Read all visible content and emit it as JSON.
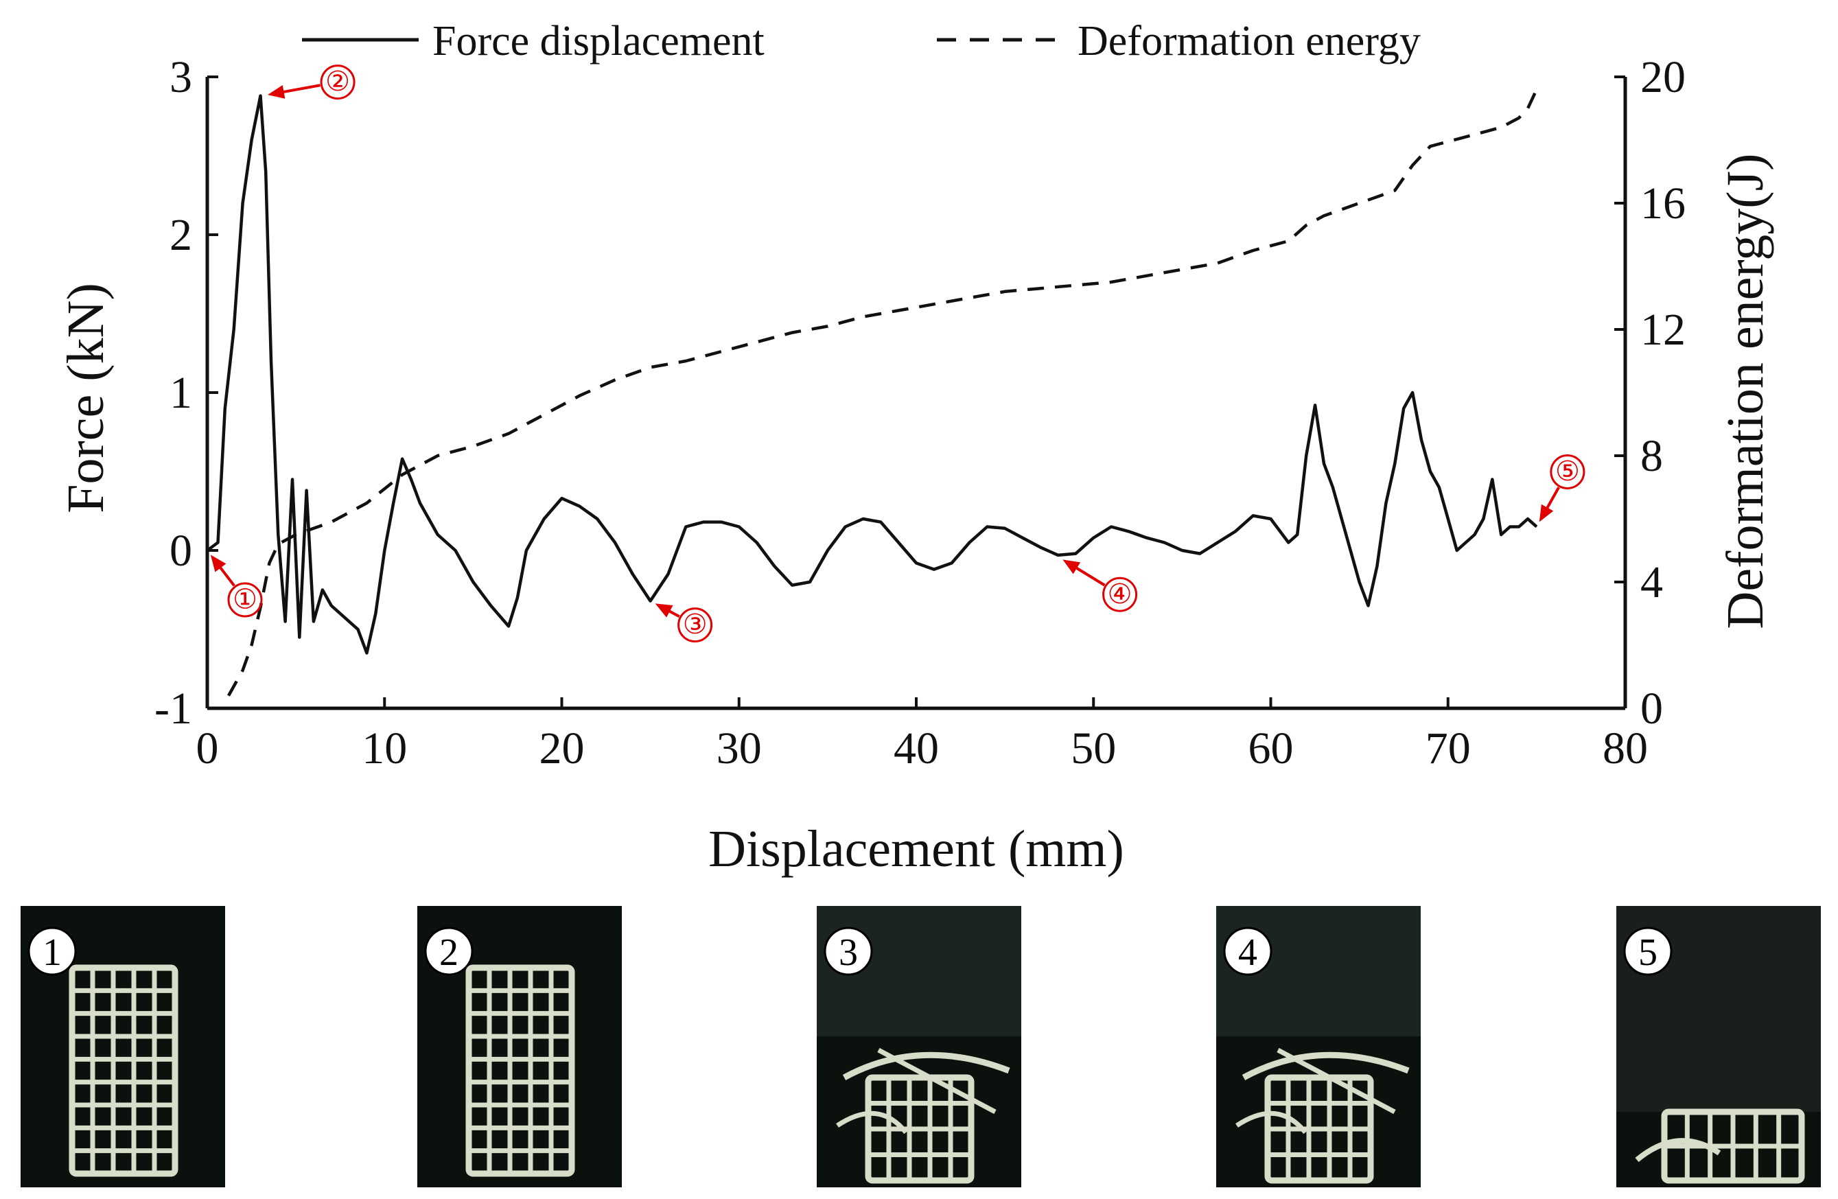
{
  "chart_data": {
    "type": "line",
    "title": "",
    "xlabel": "Displacement (mm)",
    "ylabel_left": "Force (kN)",
    "ylabel_right": "Deformation energy(J)",
    "xlim": [
      0,
      80
    ],
    "ylim_left": [
      -1,
      3
    ],
    "ylim_right": [
      0,
      20
    ],
    "x_ticks": [
      "0",
      "10",
      "20",
      "30",
      "40",
      "50",
      "60",
      "70",
      "80"
    ],
    "y_left_ticks": [
      "-1",
      "0",
      "1",
      "2",
      "3"
    ],
    "y_right_ticks": [
      "0",
      "4",
      "8",
      "12",
      "16",
      "20"
    ],
    "legend": [
      "Force displacement",
      "Deformation energy"
    ],
    "legend_position": "top",
    "series": [
      {
        "name": "Force displacement",
        "axis": "left",
        "style": "solid",
        "x": [
          0,
          0.6,
          1,
          1.5,
          2,
          2.5,
          3,
          3.3,
          3.6,
          4,
          4.4,
          4.8,
          5.2,
          5.6,
          6,
          6.5,
          7,
          7.5,
          8,
          8.5,
          9,
          9.5,
          10,
          10.5,
          11,
          11.5,
          12,
          12.5,
          13,
          13.5,
          14,
          14.5,
          15,
          16,
          17,
          17.5,
          18,
          19,
          20,
          21,
          22,
          23,
          24,
          25,
          26,
          27,
          28,
          29,
          30,
          31,
          32,
          33,
          34,
          35,
          36,
          37,
          38,
          39,
          40,
          41,
          42,
          43,
          44,
          45,
          46,
          47,
          48,
          49,
          50,
          51,
          52,
          53,
          54,
          55,
          56,
          57,
          58,
          59,
          60,
          61,
          61.5,
          62,
          62.5,
          63,
          63.5,
          64,
          64.5,
          65,
          65.5,
          66,
          66.5,
          67,
          67.5,
          68,
          68.5,
          69,
          69.5,
          70,
          70.5,
          71,
          71.5,
          72,
          72.5,
          73,
          73.5,
          74,
          74.5,
          75
        ],
        "y": [
          0.0,
          0.05,
          0.9,
          1.4,
          2.2,
          2.6,
          2.88,
          2.4,
          1.2,
          0.1,
          -0.45,
          0.45,
          -0.55,
          0.38,
          -0.45,
          -0.25,
          -0.35,
          -0.4,
          -0.45,
          -0.5,
          -0.65,
          -0.4,
          0.0,
          0.3,
          0.58,
          0.45,
          0.3,
          0.2,
          0.1,
          0.05,
          0.0,
          -0.1,
          -0.2,
          -0.35,
          -0.48,
          -0.3,
          0.0,
          0.2,
          0.33,
          0.28,
          0.2,
          0.05,
          -0.15,
          -0.32,
          -0.15,
          0.15,
          0.18,
          0.18,
          0.15,
          0.05,
          -0.1,
          -0.22,
          -0.2,
          0.0,
          0.15,
          0.2,
          0.18,
          0.05,
          -0.08,
          -0.12,
          -0.08,
          0.05,
          0.15,
          0.14,
          0.08,
          0.02,
          -0.03,
          -0.02,
          0.08,
          0.15,
          0.12,
          0.08,
          0.05,
          0.0,
          -0.02,
          0.05,
          0.12,
          0.22,
          0.2,
          0.05,
          0.1,
          0.6,
          0.92,
          0.55,
          0.4,
          0.2,
          0.0,
          -0.2,
          -0.35,
          -0.1,
          0.3,
          0.55,
          0.9,
          1.0,
          0.7,
          0.5,
          0.4,
          0.2,
          0.0,
          0.05,
          0.1,
          0.2,
          0.45,
          0.1,
          0.15,
          0.15,
          0.2,
          0.15
        ],
        "annotations": [
          {
            "label": "①",
            "x": 0,
            "y": 0.0
          },
          {
            "label": "②",
            "x": 3.1,
            "y": 2.88
          },
          {
            "label": "③",
            "x": 25,
            "y": -0.32
          },
          {
            "label": "④",
            "x": 48,
            "y": -0.04
          },
          {
            "label": "⑤",
            "x": 75,
            "y": 0.15
          }
        ]
      },
      {
        "name": "Deformation energy",
        "axis": "right",
        "style": "dashed",
        "x": [
          1.2,
          2,
          2.5,
          3,
          3.5,
          4,
          5,
          7,
          9,
          11,
          13,
          15,
          17,
          19,
          21,
          23,
          25,
          27,
          29,
          31,
          33,
          35,
          37,
          39,
          41,
          43,
          45,
          47,
          49,
          51,
          53,
          55,
          57,
          59,
          61,
          62,
          63,
          65,
          67,
          68,
          69,
          71,
          73,
          74,
          74.5,
          75
        ],
        "y": [
          0.4,
          1.2,
          2.0,
          3.2,
          4.6,
          5.2,
          5.5,
          5.9,
          6.5,
          7.4,
          8.0,
          8.3,
          8.7,
          9.3,
          9.9,
          10.4,
          10.8,
          11.0,
          11.3,
          11.6,
          11.9,
          12.1,
          12.4,
          12.6,
          12.8,
          13.0,
          13.2,
          13.3,
          13.4,
          13.5,
          13.7,
          13.9,
          14.1,
          14.5,
          14.8,
          15.3,
          15.6,
          16.0,
          16.4,
          17.2,
          17.8,
          18.1,
          18.4,
          18.7,
          19.0,
          19.6
        ]
      }
    ]
  },
  "photos": [
    {
      "label": "1",
      "stage": "intact"
    },
    {
      "label": "2",
      "stage": "intact"
    },
    {
      "label": "3",
      "stage": "crushed"
    },
    {
      "label": "4",
      "stage": "crushed"
    },
    {
      "label": "5",
      "stage": "compacted"
    }
  ],
  "colors": {
    "line": "#111111",
    "annotation": "#e00000",
    "photo_bg": "#0b120d",
    "lattice": "#d7ddc9"
  }
}
